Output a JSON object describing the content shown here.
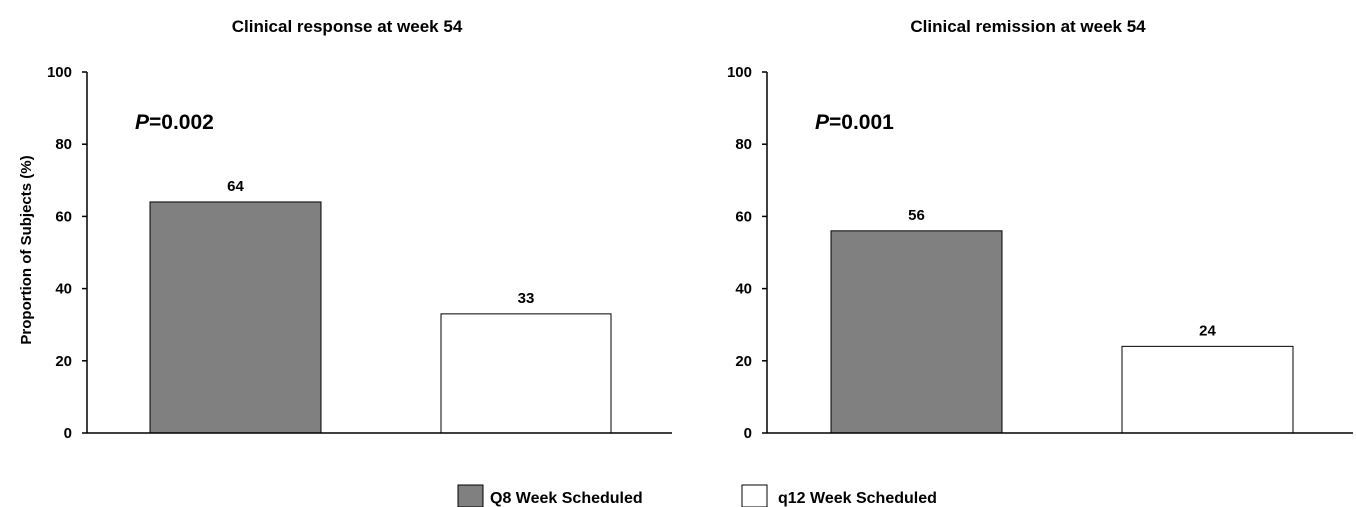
{
  "chart_data": [
    {
      "type": "bar",
      "title": "Clinical response at week 54",
      "xlabel": "",
      "ylabel": "Proportion of Subjects (%)",
      "ylim": [
        0,
        100
      ],
      "yticks": [
        0,
        20,
        40,
        60,
        80,
        100
      ],
      "categories": [
        "Q8 Week Scheduled",
        "q12 Week Scheduled"
      ],
      "values": [
        64,
        33
      ],
      "data_labels": [
        "64",
        "33"
      ],
      "annotation": {
        "p_italic": "P",
        "p_rest": "=0.002"
      },
      "grid": false
    },
    {
      "type": "bar",
      "title": "Clinical remission at week 54",
      "xlabel": "",
      "ylabel": "",
      "ylim": [
        0,
        100
      ],
      "yticks": [
        0,
        20,
        40,
        60,
        80,
        100
      ],
      "categories": [
        "Q8 Week Scheduled",
        "q12 Week Scheduled"
      ],
      "values": [
        56,
        24
      ],
      "data_labels": [
        "56",
        "24"
      ],
      "annotation": {
        "p_italic": "P",
        "p_rest": "=0.001"
      },
      "grid": false
    }
  ],
  "legend": {
    "position": "bottom-center",
    "items": [
      {
        "label": "Q8 Week Scheduled",
        "color": "#808080"
      },
      {
        "label": "q12 Week Scheduled",
        "color": "#ffffff"
      }
    ]
  },
  "colors": {
    "q8": "#808080",
    "q12": "#ffffff",
    "stroke": "#000000"
  }
}
